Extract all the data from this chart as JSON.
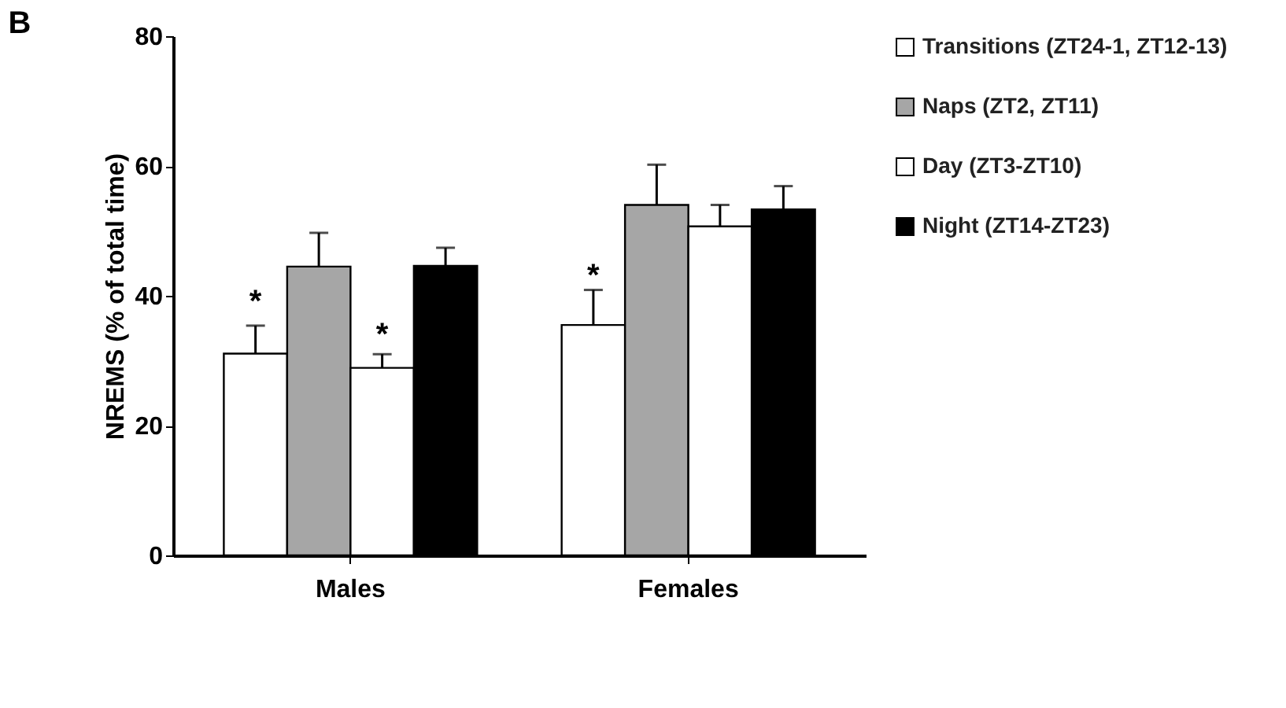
{
  "chart_data": {
    "type": "bar",
    "title": "B",
    "ylabel": "NREMS (% of total time)",
    "categories": [
      "Males",
      "Females"
    ],
    "series": [
      {
        "name": "Transitions (ZT24-1, ZT12-13)",
        "color": "#ffffff",
        "values": [
          31.1,
          35.5
        ],
        "errors": [
          4.3,
          5.4
        ]
      },
      {
        "name": "Naps (ZT2, ZT11)",
        "color": "#a6a6a6",
        "values": [
          44.5,
          54.0
        ],
        "errors": [
          5.2,
          6.2
        ]
      },
      {
        "name": "Day (ZT3-ZT10)",
        "color": "#ffffff",
        "values": [
          28.9,
          50.7
        ],
        "errors": [
          2.1,
          3.3
        ]
      },
      {
        "name": "Night (ZT14-ZT23)",
        "color": "#000000",
        "values": [
          44.6,
          53.3
        ],
        "errors": [
          2.8,
          3.6
        ]
      }
    ],
    "ylim": [
      0,
      80
    ],
    "yticks": [
      0,
      20,
      40,
      60,
      80
    ],
    "grid": false,
    "legend": "right",
    "annotations": [
      {
        "text": "*",
        "x": "Males",
        "y": 39
      },
      {
        "text": "*",
        "x": "Males",
        "y": 34
      },
      {
        "text": "*",
        "x": "Females",
        "y": 43
      }
    ]
  }
}
